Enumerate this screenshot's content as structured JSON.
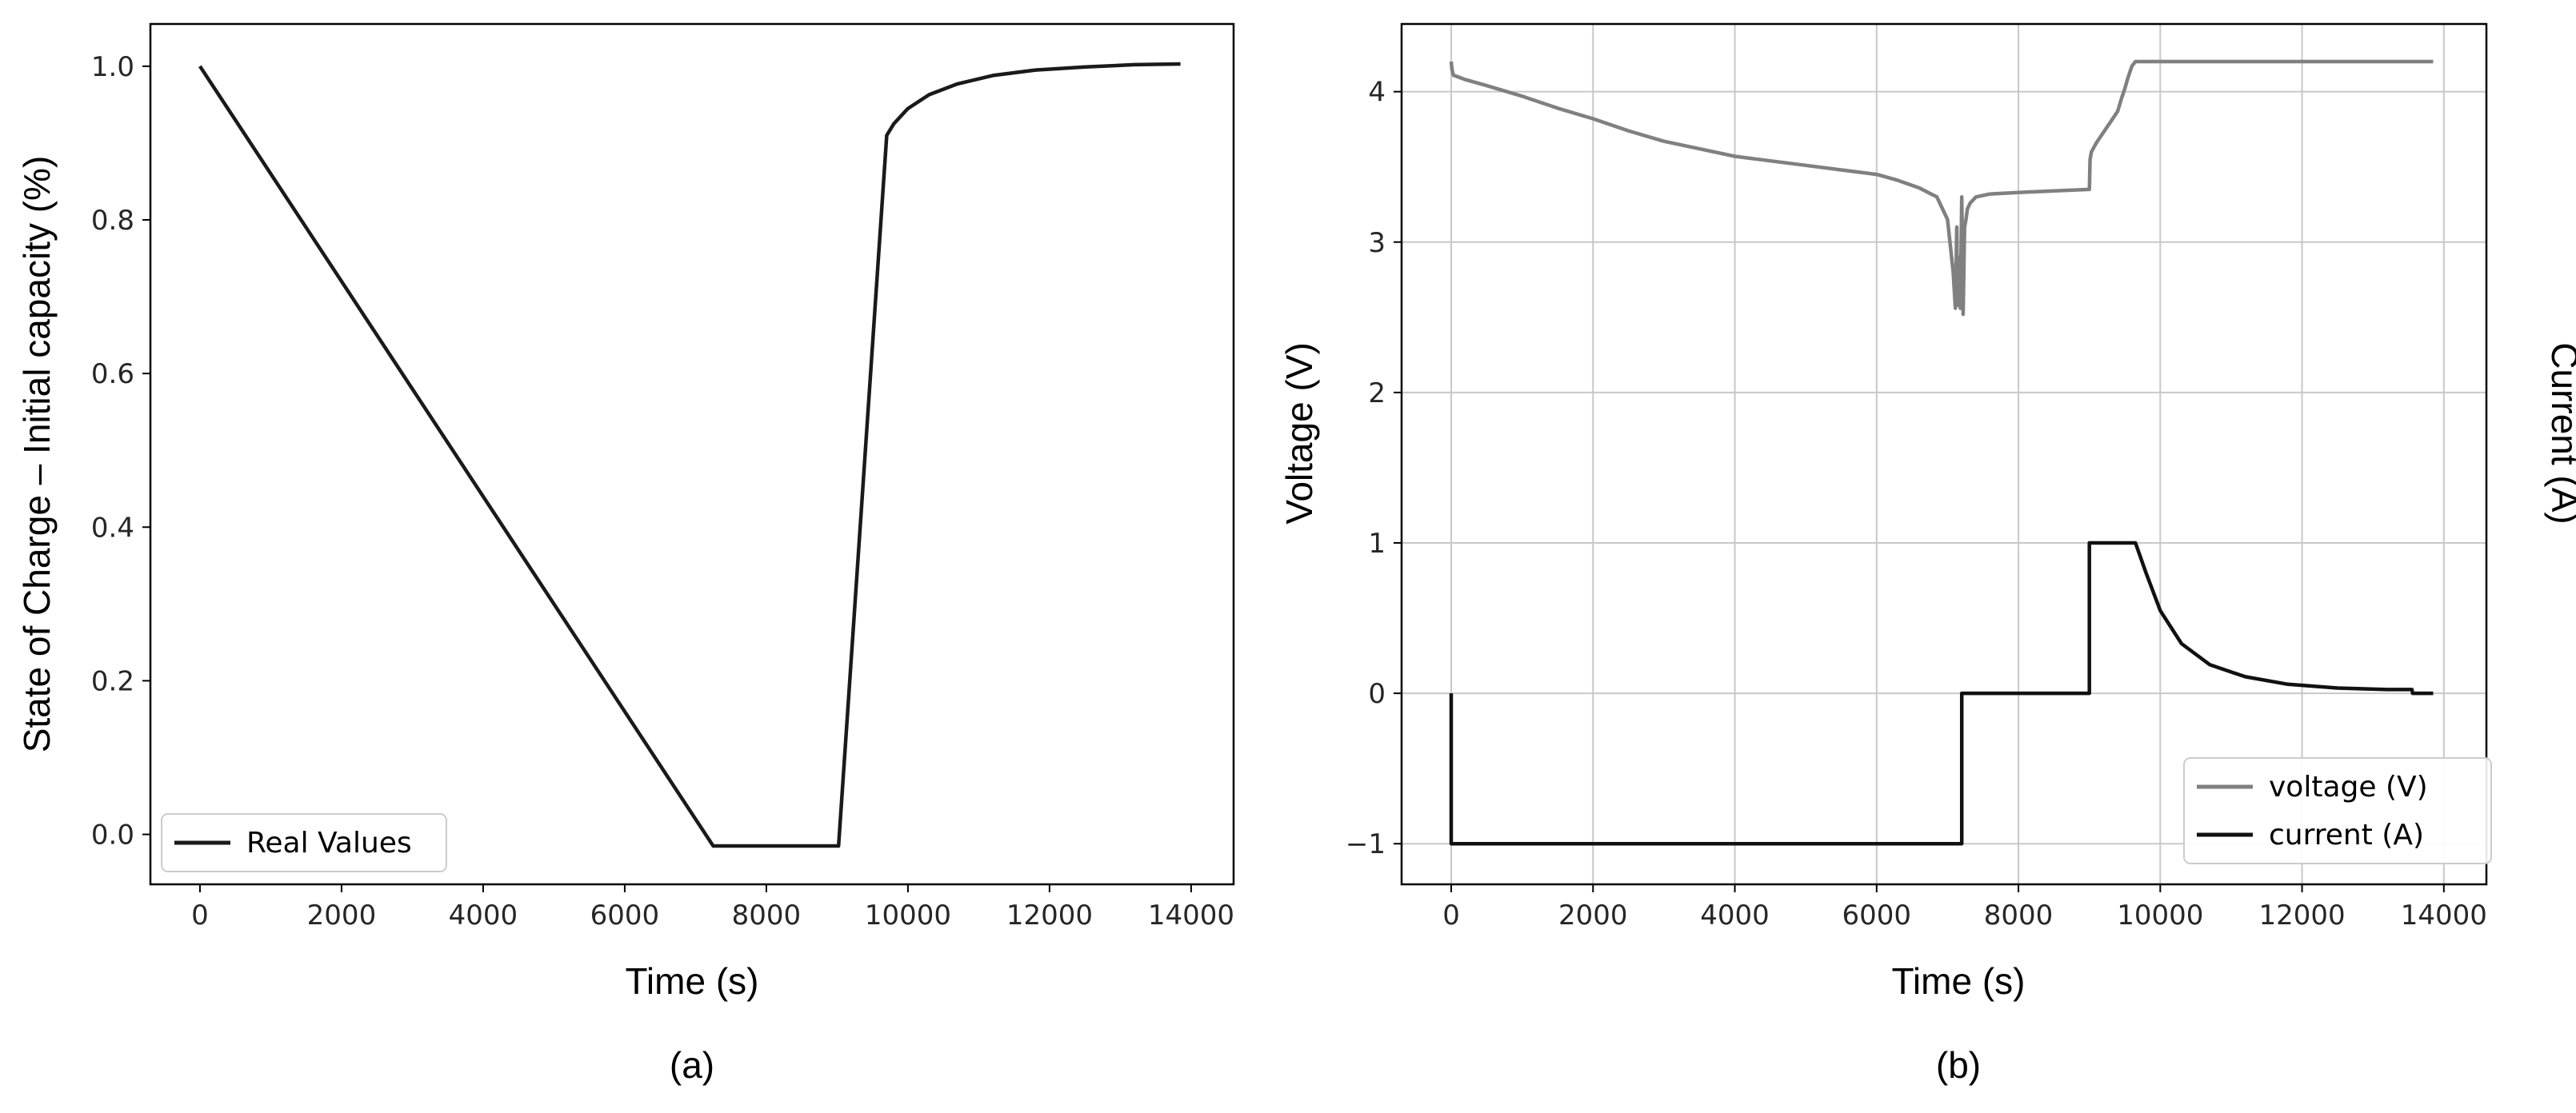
{
  "chart_data": [
    {
      "type": "line",
      "xlabel": "Time (s)",
      "ylabel": "State of Charge – Initial capacity (%)",
      "caption": "(a)",
      "xlim": [
        -700,
        14600
      ],
      "ylim": [
        -0.065,
        1.055
      ],
      "xticks": [
        0,
        2000,
        4000,
        6000,
        8000,
        10000,
        12000,
        14000
      ],
      "xtick_labels": [
        "0",
        "2000",
        "4000",
        "6000",
        "8000",
        "10000",
        "12000",
        "14000"
      ],
      "yticks": [
        0.0,
        0.2,
        0.4,
        0.6,
        0.8,
        1.0
      ],
      "ytick_labels": [
        "0.0",
        "0.2",
        "0.4",
        "0.6",
        "0.8",
        "1.0"
      ],
      "grid": false,
      "legend": "lower-left",
      "series": [
        {
          "name": "Real Values",
          "color": "#1a1a1a",
          "x": [
            0,
            7250,
            9020,
            9700,
            9800,
            10000,
            10300,
            10700,
            11200,
            11800,
            12500,
            13200,
            13850
          ],
          "y": [
            1.0,
            -0.015,
            -0.015,
            0.91,
            0.925,
            0.945,
            0.963,
            0.977,
            0.988,
            0.995,
            0.999,
            1.002,
            1.003
          ]
        }
      ]
    },
    {
      "type": "line",
      "xlabel": "Time (s)",
      "ylabel": "Voltage (V)",
      "ylabel_right": "Current (A)",
      "caption": "(b)",
      "xlim": [
        -700,
        14600
      ],
      "ylim": [
        -1.27,
        4.45
      ],
      "xticks": [
        0,
        2000,
        4000,
        6000,
        8000,
        10000,
        12000,
        14000
      ],
      "xtick_labels": [
        "0",
        "2000",
        "4000",
        "6000",
        "8000",
        "10000",
        "12000",
        "14000"
      ],
      "yticks": [
        -1,
        0,
        1,
        2,
        3,
        4
      ],
      "ytick_labels": [
        "−1",
        "0",
        "1",
        "2",
        "3",
        "4"
      ],
      "grid": true,
      "legend": "lower-right",
      "series": [
        {
          "name": "voltage (V)",
          "color": "#808080",
          "x": [
            0,
            10,
            30,
            200,
            500,
            1000,
            1500,
            2000,
            2500,
            3000,
            3500,
            4000,
            4500,
            5000,
            5500,
            6000,
            6300,
            6600,
            6850,
            7000,
            7080,
            7110,
            7130,
            7140,
            7160,
            7180,
            7200,
            7220,
            7240,
            7260,
            7280,
            7320,
            7400,
            7600,
            8000,
            8500,
            9000,
            9010,
            9030,
            9100,
            9200,
            9300,
            9400,
            9450,
            9500,
            9550,
            9600,
            9650,
            13850
          ],
          "y": [
            4.2,
            4.15,
            4.11,
            4.08,
            4.04,
            3.97,
            3.89,
            3.82,
            3.74,
            3.67,
            3.62,
            3.57,
            3.54,
            3.51,
            3.48,
            3.45,
            3.41,
            3.36,
            3.3,
            3.15,
            2.8,
            2.56,
            3.1,
            2.58,
            2.9,
            2.56,
            3.3,
            2.52,
            3.1,
            3.15,
            3.22,
            3.26,
            3.3,
            3.32,
            3.33,
            3.34,
            3.35,
            3.55,
            3.6,
            3.66,
            3.73,
            3.8,
            3.87,
            3.95,
            4.02,
            4.1,
            4.17,
            4.2,
            4.2
          ]
        },
        {
          "name": "current (A)",
          "color": "#111111",
          "x": [
            0,
            0,
            7200,
            7200,
            9000,
            9000,
            9650,
            9800,
            10000,
            10300,
            10700,
            11200,
            11800,
            12500,
            13200,
            13550,
            13560,
            13850
          ],
          "y": [
            0,
            -1,
            -1,
            0,
            0,
            1,
            1,
            0.8,
            0.55,
            0.33,
            0.19,
            0.11,
            0.06,
            0.035,
            0.025,
            0.025,
            0.0,
            0.0
          ]
        }
      ]
    }
  ]
}
